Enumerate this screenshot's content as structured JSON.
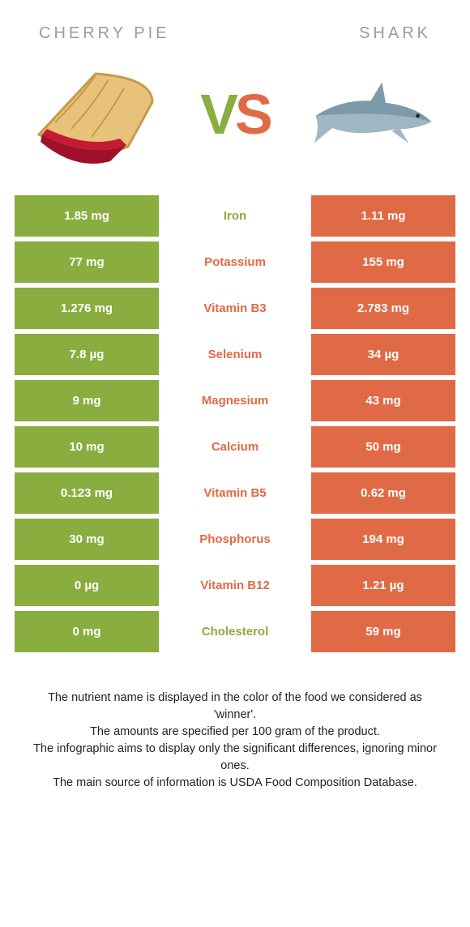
{
  "colors": {
    "left": "#8aad3f",
    "right": "#e06a46",
    "title": "#9b9b9b",
    "footer": "#222222"
  },
  "header": {
    "left_title": "Cherry Pie",
    "right_title": "Shark",
    "vs_v": "V",
    "vs_s": "S"
  },
  "rows": [
    {
      "label": "Iron",
      "left": "1.85 mg",
      "right": "1.11 mg",
      "winner": "left"
    },
    {
      "label": "Potassium",
      "left": "77 mg",
      "right": "155 mg",
      "winner": "right"
    },
    {
      "label": "Vitamin B3",
      "left": "1.276 mg",
      "right": "2.783 mg",
      "winner": "right"
    },
    {
      "label": "Selenium",
      "left": "7.8 µg",
      "right": "34 µg",
      "winner": "right"
    },
    {
      "label": "Magnesium",
      "left": "9 mg",
      "right": "43 mg",
      "winner": "right"
    },
    {
      "label": "Calcium",
      "left": "10 mg",
      "right": "50 mg",
      "winner": "right"
    },
    {
      "label": "Vitamin B5",
      "left": "0.123 mg",
      "right": "0.62 mg",
      "winner": "right"
    },
    {
      "label": "Phosphorus",
      "left": "30 mg",
      "right": "194 mg",
      "winner": "right"
    },
    {
      "label": "Vitamin B12",
      "left": "0 µg",
      "right": "1.21 µg",
      "winner": "right"
    },
    {
      "label": "Cholesterol",
      "left": "0 mg",
      "right": "59 mg",
      "winner": "left"
    }
  ],
  "footer": {
    "line1": "The nutrient name is displayed in the color of the food we considered as 'winner'.",
    "line2": "The amounts are specified per 100 gram of the product.",
    "line3": "The infographic aims to display only the significant differences, ignoring minor ones.",
    "line4": "The main source of information is USDA Food Composition Database."
  }
}
